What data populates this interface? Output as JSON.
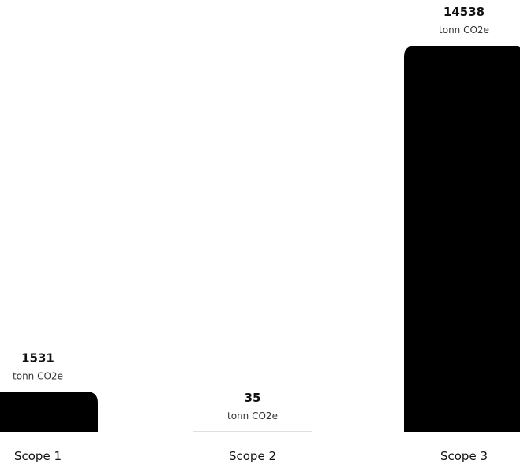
{
  "chart_data": {
    "type": "bar",
    "categories": [
      "Scope 1",
      "Scope 2",
      "Scope 3"
    ],
    "values": [
      1531,
      35,
      14538
    ],
    "unit": "tonn CO2e",
    "ylim": [
      0,
      14538
    ],
    "grid": false,
    "bar_color": "#000000",
    "title": "",
    "xlabel": "",
    "ylabel": ""
  }
}
